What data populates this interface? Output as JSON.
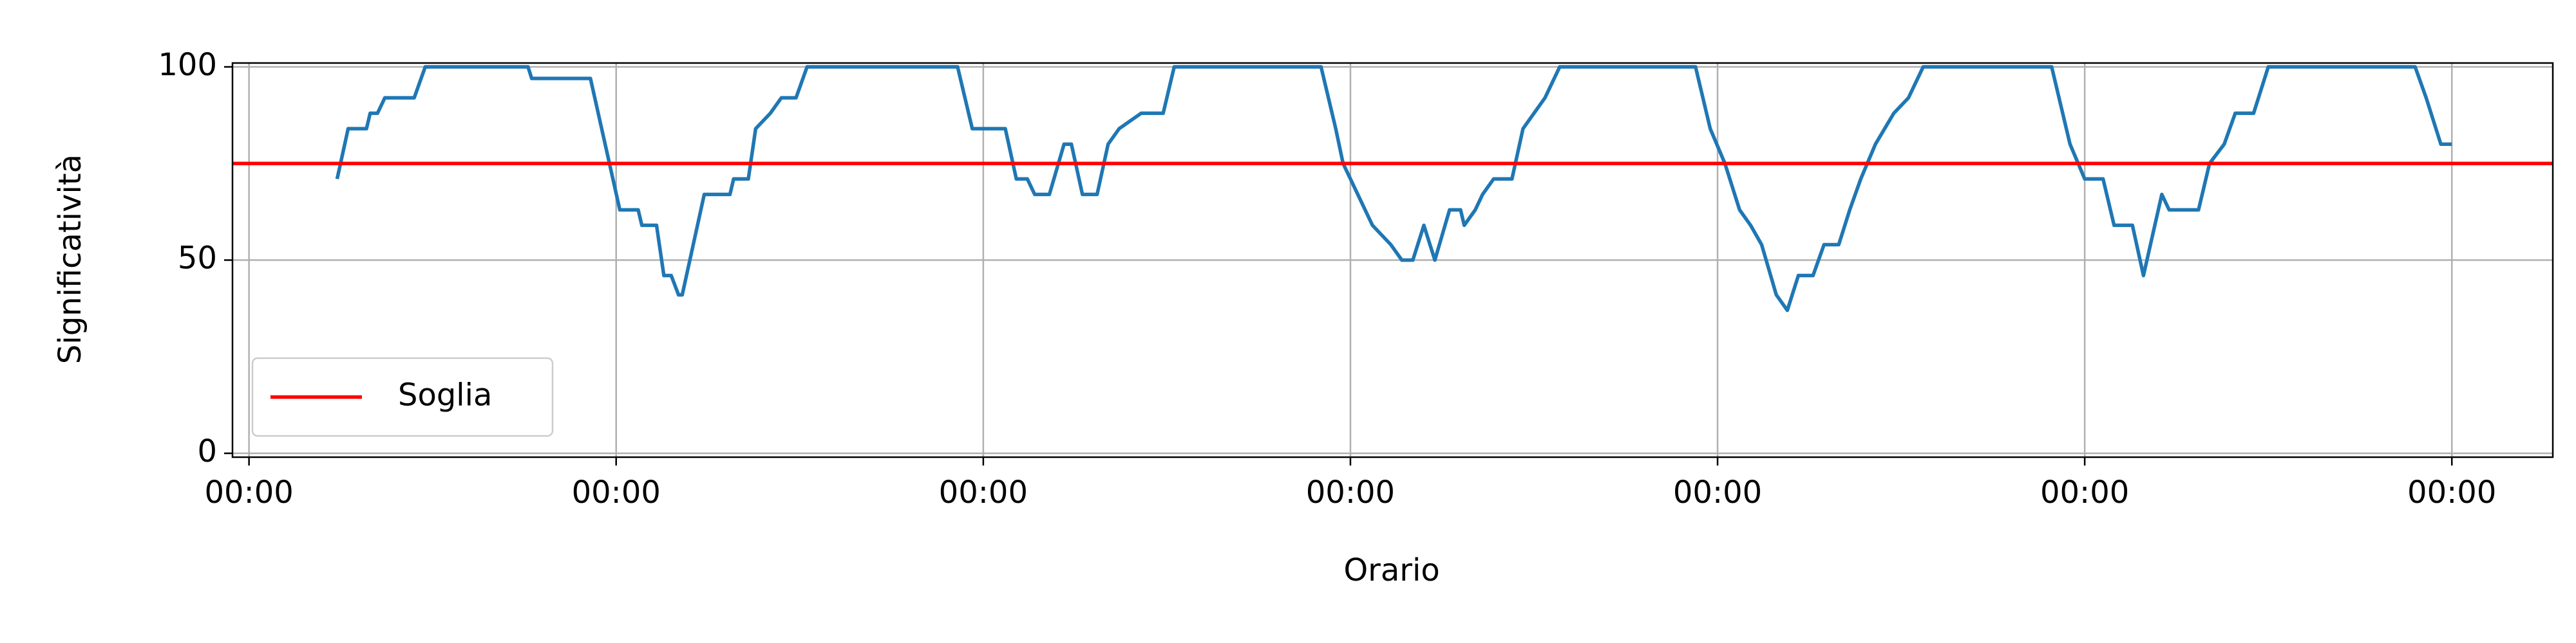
{
  "chart_data": {
    "type": "line",
    "xlabel": "Orario",
    "ylabel": "Significatività",
    "xlim": [
      -0.045,
      6.275
    ],
    "ylim": [
      -1,
      101
    ],
    "xticks": [
      {
        "value": 0,
        "label": "00:00"
      },
      {
        "value": 1,
        "label": "00:00"
      },
      {
        "value": 2,
        "label": "00:00"
      },
      {
        "value": 3,
        "label": "00:00"
      },
      {
        "value": 4,
        "label": "00:00"
      },
      {
        "value": 5,
        "label": "00:00"
      },
      {
        "value": 6,
        "label": "00:00"
      }
    ],
    "yticks": [
      0,
      50,
      100
    ],
    "grid": true,
    "legend": "lower left",
    "threshold": {
      "name": "Soglia",
      "value": 75,
      "color": "#ff0000"
    },
    "series": [
      {
        "color": "#1f77b4",
        "x": [
          0.24,
          0.27,
          0.32,
          0.33,
          0.35,
          0.37,
          0.45,
          0.48,
          0.76,
          0.77,
          0.93,
          1.01,
          1.06,
          1.07,
          1.11,
          1.13,
          1.15,
          1.17,
          1.18,
          1.24,
          1.31,
          1.32,
          1.36,
          1.38,
          1.42,
          1.45,
          1.49,
          1.52,
          1.93,
          1.97,
          2.06,
          2.09,
          2.12,
          2.14,
          2.18,
          2.22,
          2.24,
          2.27,
          2.31,
          2.34,
          2.37,
          2.43,
          2.49,
          2.52,
          2.92,
          2.96,
          2.98,
          3.02,
          3.06,
          3.11,
          3.14,
          3.17,
          3.2,
          3.23,
          3.27,
          3.3,
          3.31,
          3.34,
          3.36,
          3.39,
          3.44,
          3.47,
          3.5,
          3.53,
          3.57,
          3.94,
          3.98,
          4.02,
          4.06,
          4.09,
          4.12,
          4.16,
          4.19,
          4.22,
          4.26,
          4.29,
          4.33,
          4.36,
          4.39,
          4.43,
          4.48,
          4.52,
          4.56,
          4.91,
          4.96,
          5.0,
          5.05,
          5.08,
          5.13,
          5.16,
          5.21,
          5.23,
          5.31,
          5.34,
          5.38,
          5.41,
          5.46,
          5.5,
          5.9,
          5.93,
          5.97,
          6.0
        ],
        "values": [
          71,
          84,
          84,
          88,
          88,
          92,
          92,
          100,
          100,
          97,
          97,
          63,
          63,
          59,
          59,
          46,
          46,
          41,
          41,
          67,
          67,
          71,
          71,
          84,
          88,
          92,
          92,
          100,
          100,
          84,
          84,
          71,
          71,
          67,
          67,
          80,
          80,
          67,
          67,
          80,
          84,
          88,
          88,
          100,
          100,
          84,
          75,
          67,
          59,
          54,
          50,
          50,
          59,
          50,
          63,
          63,
          59,
          63,
          67,
          71,
          71,
          84,
          88,
          92,
          100,
          100,
          84,
          75,
          63,
          59,
          54,
          41,
          37,
          46,
          46,
          54,
          54,
          63,
          71,
          80,
          88,
          92,
          100,
          100,
          80,
          71,
          71,
          59,
          59,
          46,
          67,
          63,
          63,
          75,
          80,
          88,
          88,
          100,
          100,
          92,
          80,
          80
        ]
      }
    ]
  }
}
